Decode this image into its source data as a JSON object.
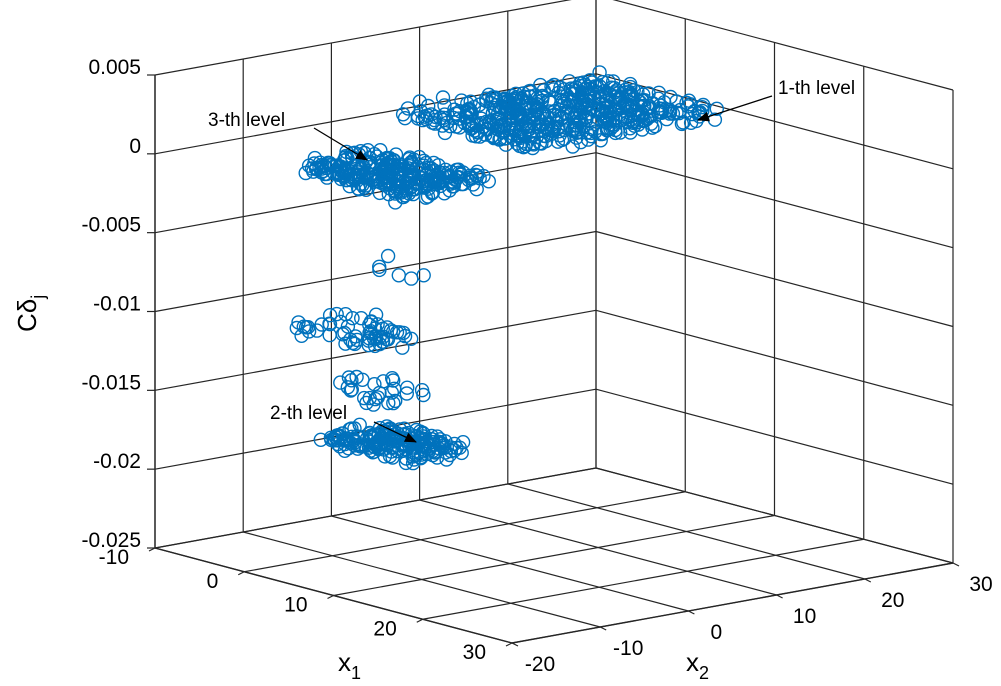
{
  "chart_data": {
    "type": "scatter",
    "projection": "3d",
    "marker": "circle-open",
    "series_color": "#0072BD",
    "grid": true,
    "xlabel": "x",
    "xlabel_sub": "1",
    "ylabel": "x",
    "ylabel_sub": "2",
    "zlabel": "Cδ",
    "zlabel_sub": "j",
    "xlim": [
      -10,
      30
    ],
    "ylim": [
      -20,
      30
    ],
    "zlim": [
      -0.025,
      0.005
    ],
    "x_ticks": [
      "-10",
      "0",
      "10",
      "20",
      "30"
    ],
    "y_ticks": [
      "-20",
      "-10",
      "0",
      "10",
      "20",
      "30"
    ],
    "z_ticks": [
      "0.005",
      "0",
      "-0.005",
      "-0.01",
      "-0.015",
      "-0.02",
      "-0.025"
    ],
    "x_tick_values": [
      -10,
      0,
      10,
      20,
      30
    ],
    "y_tick_values": [
      -20,
      -10,
      0,
      10,
      20,
      30
    ],
    "z_tick_values": [
      0.005,
      0,
      -0.005,
      -0.01,
      -0.015,
      -0.02,
      -0.025
    ],
    "clusters": [
      {
        "label": "1-th level",
        "x_range": [
          -8,
          6
        ],
        "y_range": [
          6,
          28
        ],
        "z_mean": 0.0002,
        "z_spread": 0.0009,
        "count": 540
      },
      {
        "label": "3-th level",
        "x_range": [
          -10,
          2
        ],
        "y_range": [
          -4,
          6
        ],
        "z_mean": -0.0025,
        "z_spread": 0.0008,
        "count": 300
      },
      {
        "label": "2-th level",
        "x_range": [
          -6,
          4
        ],
        "y_range": [
          -6,
          2
        ],
        "z_mean": -0.0188,
        "z_spread": 0.0007,
        "count": 200
      },
      {
        "label": "",
        "x_range": [
          -8,
          2
        ],
        "y_range": [
          -8,
          0
        ],
        "z_mean": -0.0118,
        "z_spread": 0.0006,
        "count": 60
      },
      {
        "label": "",
        "x_range": [
          -6,
          2
        ],
        "y_range": [
          -6,
          0
        ],
        "z_mean": -0.0155,
        "z_spread": 0.0012,
        "count": 28
      },
      {
        "label": "",
        "x_range": [
          -6,
          0
        ],
        "y_range": [
          -4,
          2
        ],
        "z_mean": -0.0085,
        "z_spread": 0.001,
        "count": 6
      }
    ],
    "annotations": [
      {
        "text": "1-th level"
      },
      {
        "text": "3-th level"
      },
      {
        "text": "2-th level"
      }
    ]
  }
}
